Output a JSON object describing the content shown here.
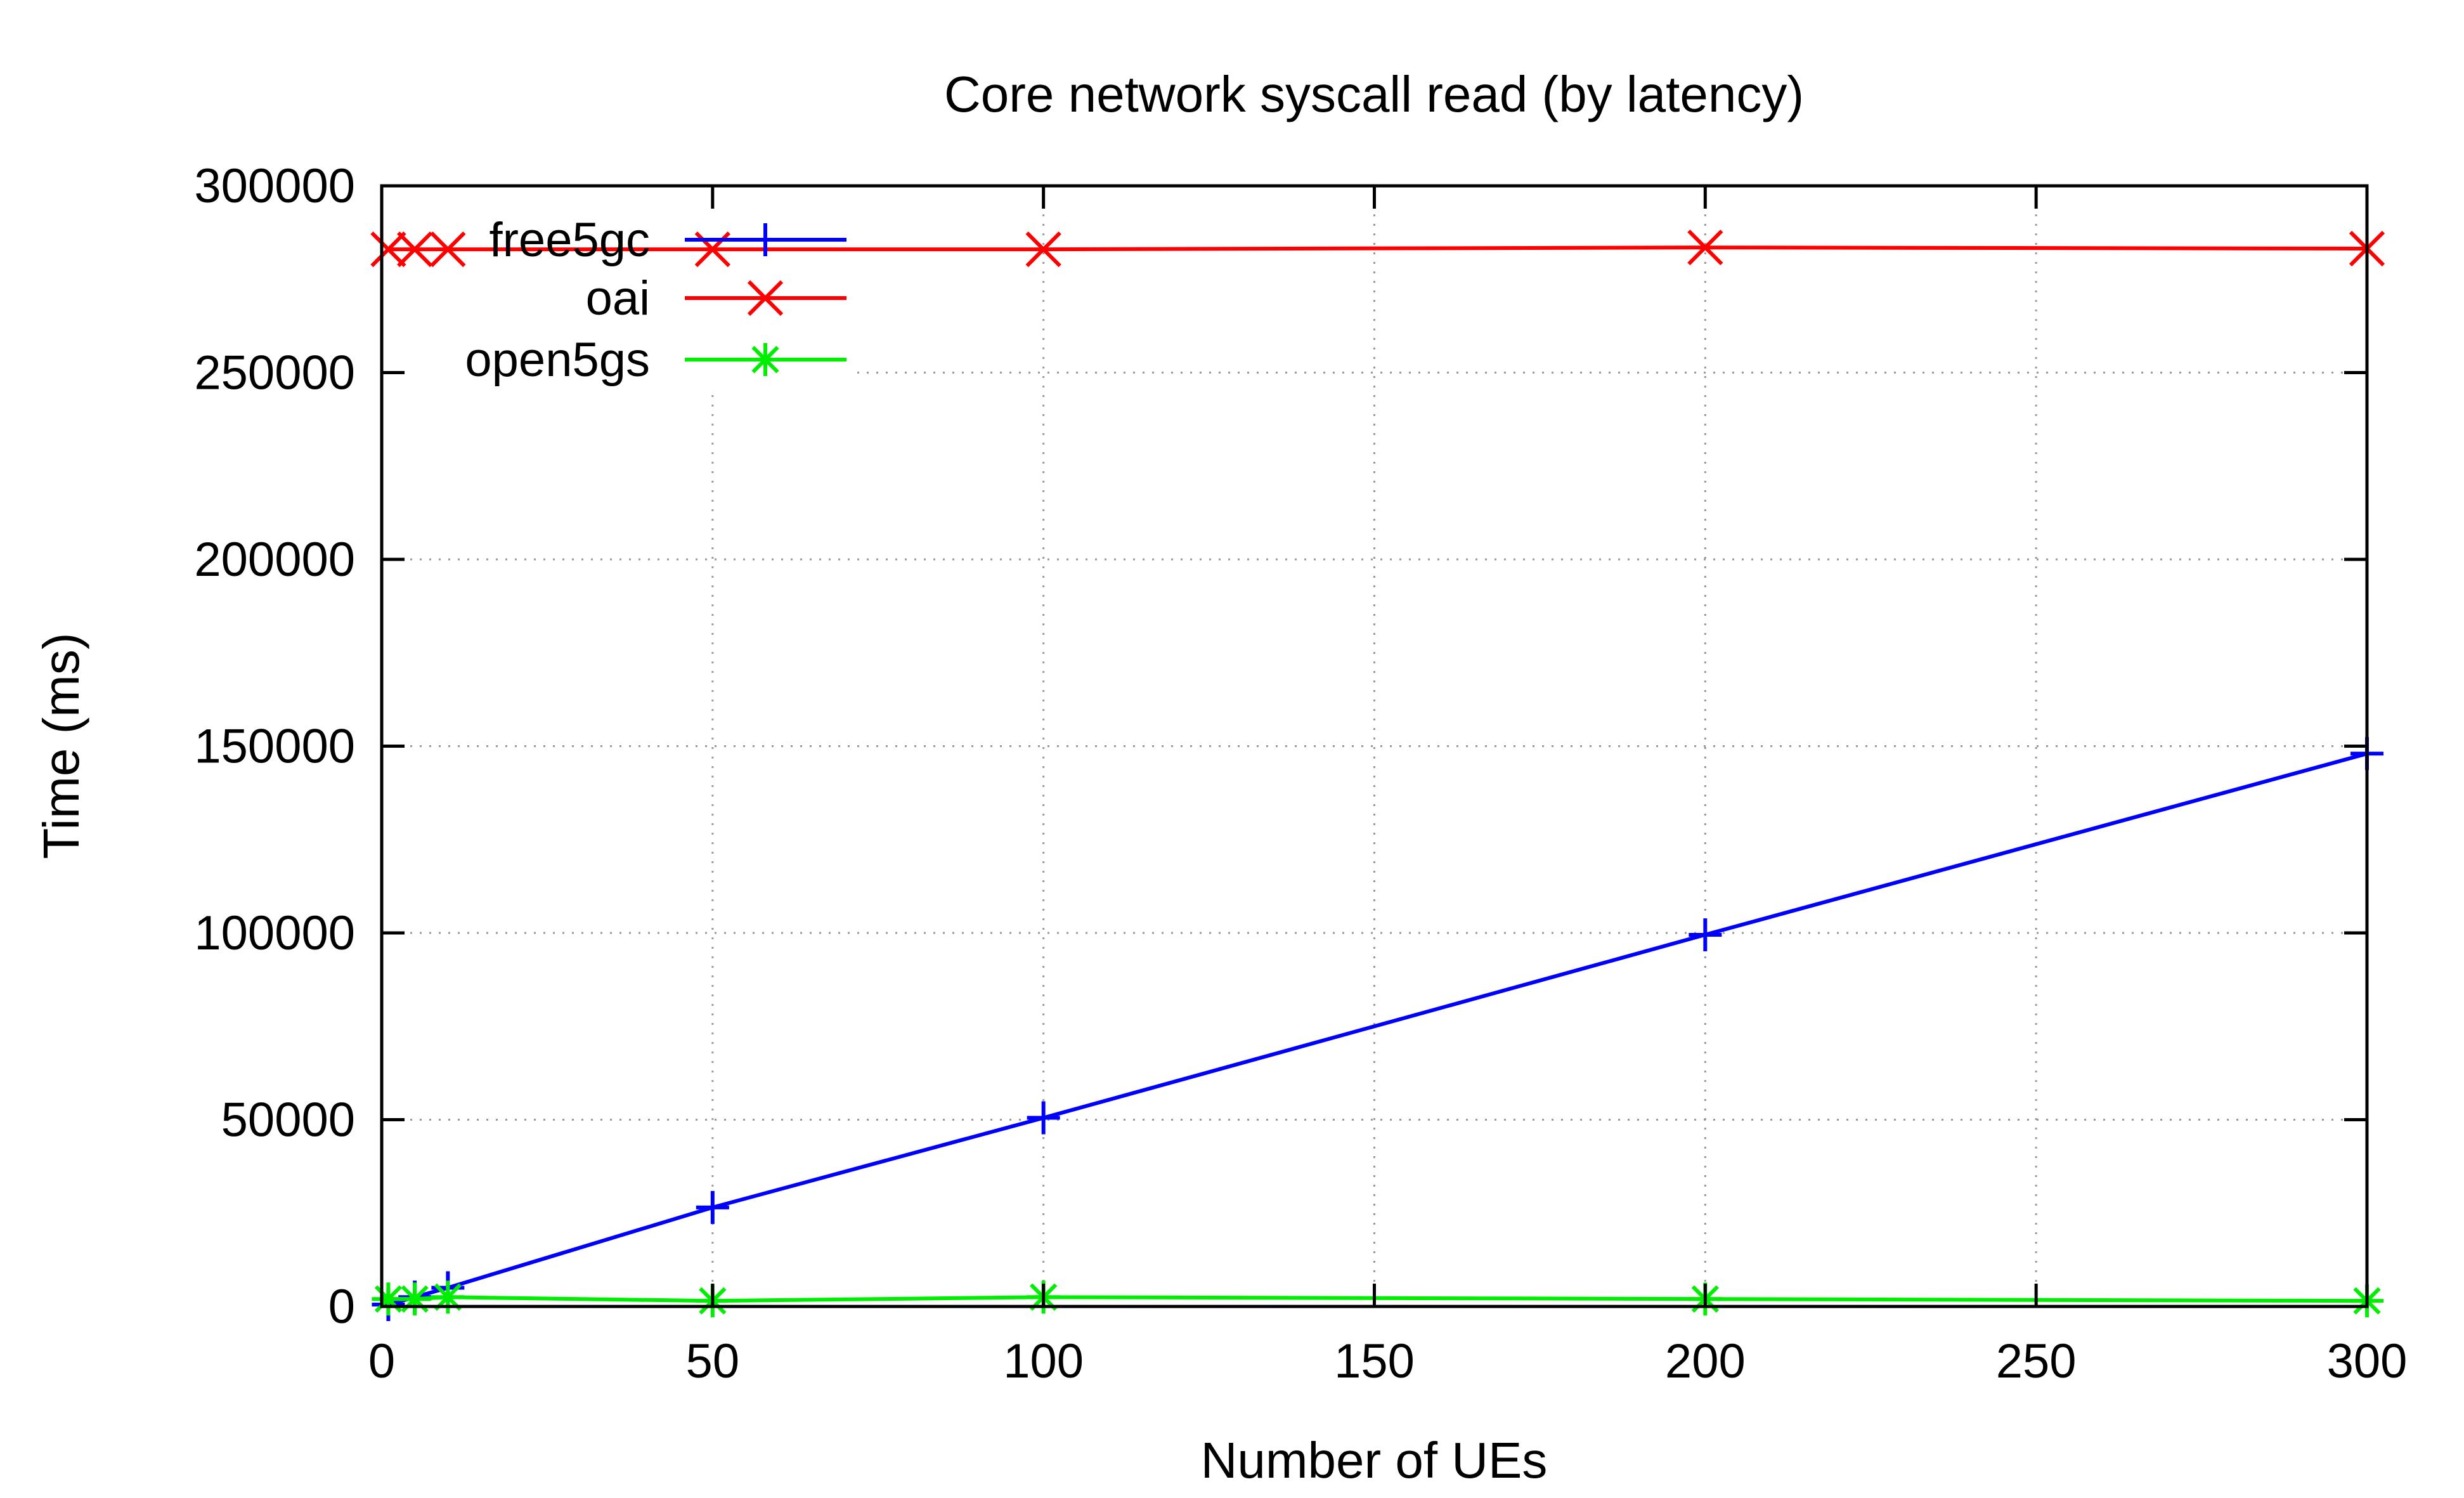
{
  "chart_data": {
    "type": "line",
    "title": "Core network syscall read (by latency)",
    "xlabel": "Number of UEs",
    "ylabel": "Time (ms)",
    "xlim": [
      0,
      300
    ],
    "ylim": [
      0,
      300000
    ],
    "xticks": [
      0,
      50,
      100,
      150,
      200,
      250,
      300
    ],
    "yticks": [
      0,
      50000,
      100000,
      150000,
      200000,
      250000,
      300000
    ],
    "grid": true,
    "legend_position": "top-left",
    "series": [
      {
        "name": "free5gc",
        "color": "#0000ff",
        "marker": "plus",
        "x": [
          1,
          5,
          10,
          50,
          100,
          200,
          300
        ],
        "y": [
          500,
          2500,
          5000,
          26500,
          50500,
          99500,
          148000
        ]
      },
      {
        "name": "oai",
        "color": "#ff0000",
        "marker": "cross",
        "x": [
          1,
          5,
          10,
          50,
          100,
          200,
          300
        ],
        "y": [
          283000,
          283000,
          283000,
          283000,
          283000,
          283500,
          283200
        ]
      },
      {
        "name": "open5gs",
        "color": "#00ee00",
        "marker": "star",
        "x": [
          1,
          5,
          10,
          50,
          100,
          200,
          300
        ],
        "y": [
          2000,
          2000,
          2500,
          1500,
          2500,
          2000,
          1500
        ]
      }
    ]
  }
}
